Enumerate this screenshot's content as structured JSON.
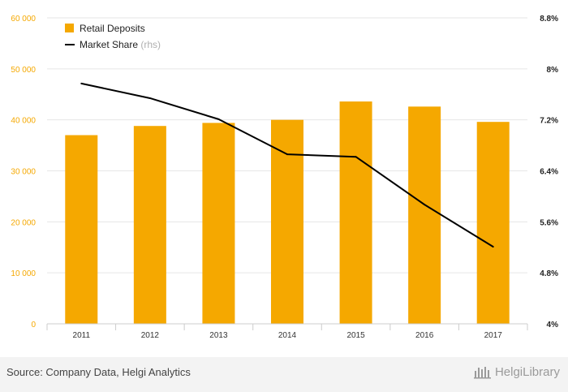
{
  "chart_data": {
    "type": "bar",
    "categories": [
      "2011",
      "2012",
      "2013",
      "2014",
      "2015",
      "2016",
      "2017"
    ],
    "series": [
      {
        "name": "Retail Deposits",
        "type": "bar",
        "axis": "left",
        "color": "#f5a800",
        "values": [
          37000,
          38800,
          39400,
          40000,
          43600,
          42600,
          39600
        ]
      },
      {
        "name": "Market Share",
        "type": "line",
        "axis": "right",
        "color": "#000000",
        "values": [
          7.77,
          7.54,
          7.21,
          6.66,
          6.62,
          5.87,
          5.21
        ]
      }
    ],
    "legend": {
      "entries": [
        {
          "label": "Retail Deposits",
          "suffix": ""
        },
        {
          "label": "Market Share",
          "suffix": "(rhs)"
        }
      ],
      "placement": "top-left"
    },
    "y_left": {
      "range": [
        0,
        60000
      ],
      "ticks": [
        0,
        10000,
        20000,
        30000,
        40000,
        50000,
        60000
      ],
      "tick_labels": [
        "0",
        "10 000",
        "20 000",
        "30 000",
        "40 000",
        "50 000",
        "60 000"
      ]
    },
    "y_right": {
      "range": [
        4,
        8.8
      ],
      "ticks": [
        4,
        4.8,
        5.6,
        6.4,
        7.2,
        8,
        8.8
      ],
      "tick_labels": [
        "4%",
        "4.8%",
        "5.6%",
        "6.4%",
        "7.2%",
        "8%",
        "8.8%"
      ]
    },
    "grid": true
  },
  "footer": {
    "source": "Source: Company Data, Helgi Analytics",
    "logo_text": "HelgiLibrary",
    "logo_icon": "helgi-library-logo-icon"
  }
}
